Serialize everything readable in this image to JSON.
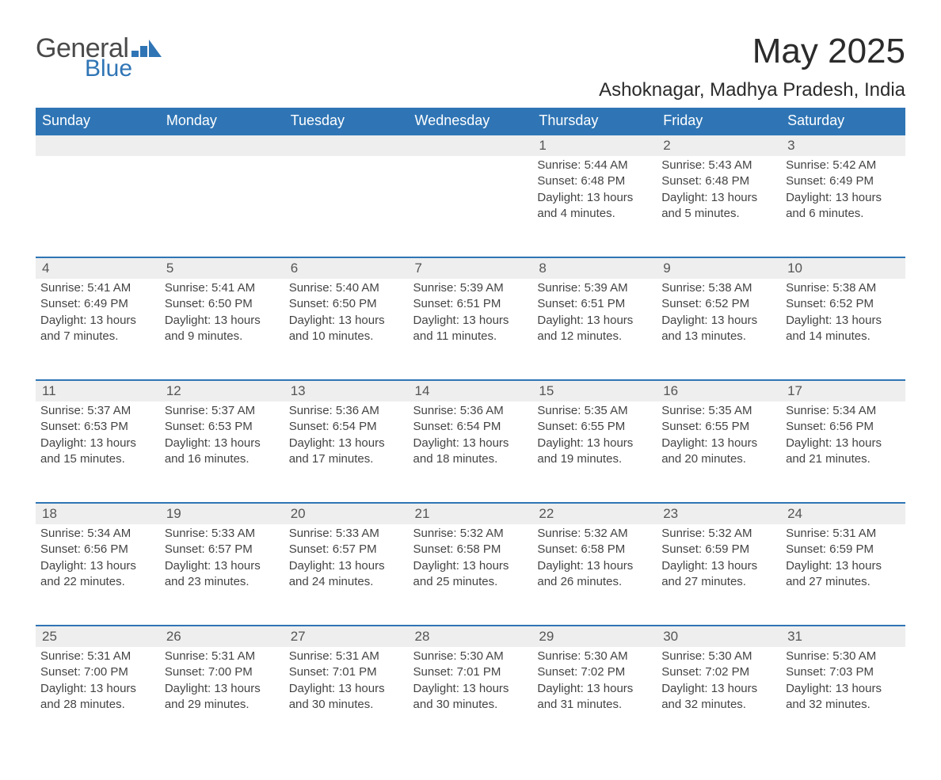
{
  "brand": {
    "general": "General",
    "blue": "Blue"
  },
  "title": "May 2025",
  "location": "Ashoknagar, Madhya Pradesh, India",
  "colors": {
    "header_bg": "#2f75b5",
    "header_text": "#ffffff",
    "daynum_bg": "#eeeeee",
    "row_border": "#2f75b5",
    "page_bg": "#ffffff",
    "body_text": "#444444",
    "logo_blue": "#2f75b5",
    "logo_gray": "#4a4a4a"
  },
  "weekdays": [
    "Sunday",
    "Monday",
    "Tuesday",
    "Wednesday",
    "Thursday",
    "Friday",
    "Saturday"
  ],
  "weeks": [
    [
      null,
      null,
      null,
      null,
      {
        "d": "1",
        "sr": "5:44 AM",
        "ss": "6:48 PM",
        "dl": "13 hours and 4 minutes."
      },
      {
        "d": "2",
        "sr": "5:43 AM",
        "ss": "6:48 PM",
        "dl": "13 hours and 5 minutes."
      },
      {
        "d": "3",
        "sr": "5:42 AM",
        "ss": "6:49 PM",
        "dl": "13 hours and 6 minutes."
      }
    ],
    [
      {
        "d": "4",
        "sr": "5:41 AM",
        "ss": "6:49 PM",
        "dl": "13 hours and 7 minutes."
      },
      {
        "d": "5",
        "sr": "5:41 AM",
        "ss": "6:50 PM",
        "dl": "13 hours and 9 minutes."
      },
      {
        "d": "6",
        "sr": "5:40 AM",
        "ss": "6:50 PM",
        "dl": "13 hours and 10 minutes."
      },
      {
        "d": "7",
        "sr": "5:39 AM",
        "ss": "6:51 PM",
        "dl": "13 hours and 11 minutes."
      },
      {
        "d": "8",
        "sr": "5:39 AM",
        "ss": "6:51 PM",
        "dl": "13 hours and 12 minutes."
      },
      {
        "d": "9",
        "sr": "5:38 AM",
        "ss": "6:52 PM",
        "dl": "13 hours and 13 minutes."
      },
      {
        "d": "10",
        "sr": "5:38 AM",
        "ss": "6:52 PM",
        "dl": "13 hours and 14 minutes."
      }
    ],
    [
      {
        "d": "11",
        "sr": "5:37 AM",
        "ss": "6:53 PM",
        "dl": "13 hours and 15 minutes."
      },
      {
        "d": "12",
        "sr": "5:37 AM",
        "ss": "6:53 PM",
        "dl": "13 hours and 16 minutes."
      },
      {
        "d": "13",
        "sr": "5:36 AM",
        "ss": "6:54 PM",
        "dl": "13 hours and 17 minutes."
      },
      {
        "d": "14",
        "sr": "5:36 AM",
        "ss": "6:54 PM",
        "dl": "13 hours and 18 minutes."
      },
      {
        "d": "15",
        "sr": "5:35 AM",
        "ss": "6:55 PM",
        "dl": "13 hours and 19 minutes."
      },
      {
        "d": "16",
        "sr": "5:35 AM",
        "ss": "6:55 PM",
        "dl": "13 hours and 20 minutes."
      },
      {
        "d": "17",
        "sr": "5:34 AM",
        "ss": "6:56 PM",
        "dl": "13 hours and 21 minutes."
      }
    ],
    [
      {
        "d": "18",
        "sr": "5:34 AM",
        "ss": "6:56 PM",
        "dl": "13 hours and 22 minutes."
      },
      {
        "d": "19",
        "sr": "5:33 AM",
        "ss": "6:57 PM",
        "dl": "13 hours and 23 minutes."
      },
      {
        "d": "20",
        "sr": "5:33 AM",
        "ss": "6:57 PM",
        "dl": "13 hours and 24 minutes."
      },
      {
        "d": "21",
        "sr": "5:32 AM",
        "ss": "6:58 PM",
        "dl": "13 hours and 25 minutes."
      },
      {
        "d": "22",
        "sr": "5:32 AM",
        "ss": "6:58 PM",
        "dl": "13 hours and 26 minutes."
      },
      {
        "d": "23",
        "sr": "5:32 AM",
        "ss": "6:59 PM",
        "dl": "13 hours and 27 minutes."
      },
      {
        "d": "24",
        "sr": "5:31 AM",
        "ss": "6:59 PM",
        "dl": "13 hours and 27 minutes."
      }
    ],
    [
      {
        "d": "25",
        "sr": "5:31 AM",
        "ss": "7:00 PM",
        "dl": "13 hours and 28 minutes."
      },
      {
        "d": "26",
        "sr": "5:31 AM",
        "ss": "7:00 PM",
        "dl": "13 hours and 29 minutes."
      },
      {
        "d": "27",
        "sr": "5:31 AM",
        "ss": "7:01 PM",
        "dl": "13 hours and 30 minutes."
      },
      {
        "d": "28",
        "sr": "5:30 AM",
        "ss": "7:01 PM",
        "dl": "13 hours and 30 minutes."
      },
      {
        "d": "29",
        "sr": "5:30 AM",
        "ss": "7:02 PM",
        "dl": "13 hours and 31 minutes."
      },
      {
        "d": "30",
        "sr": "5:30 AM",
        "ss": "7:02 PM",
        "dl": "13 hours and 32 minutes."
      },
      {
        "d": "31",
        "sr": "5:30 AM",
        "ss": "7:03 PM",
        "dl": "13 hours and 32 minutes."
      }
    ]
  ],
  "labels": {
    "sunrise": "Sunrise: ",
    "sunset": "Sunset: ",
    "daylight": "Daylight: "
  }
}
